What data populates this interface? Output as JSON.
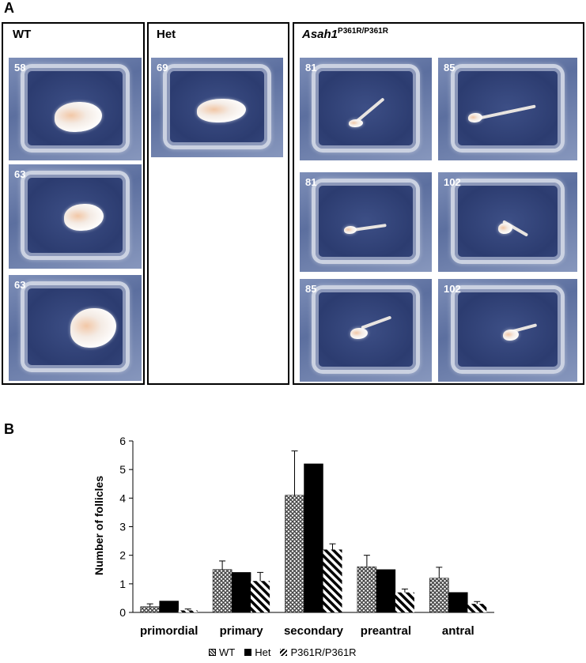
{
  "panel_a": {
    "letter": "A",
    "groups": [
      {
        "label": "WT",
        "photos": [
          "58",
          "63",
          "63"
        ]
      },
      {
        "label": "Het",
        "photos": [
          "69"
        ]
      },
      {
        "label": "Asah1",
        "label_sup": "P361R/P361R",
        "photos": [
          "81",
          "85",
          "81",
          "102",
          "85",
          "102"
        ]
      }
    ]
  },
  "panel_b": {
    "letter": "B",
    "legend": [
      "WT",
      "Het",
      "P361R/P361R"
    ]
  },
  "chart_data": {
    "type": "bar",
    "title": "",
    "xlabel": "",
    "ylabel": "Number of follicles",
    "ylim": [
      0,
      6
    ],
    "yticks": [
      "0",
      "1",
      "2",
      "3",
      "4",
      "5",
      "6"
    ],
    "categories": [
      "primordial",
      "primary",
      "secondary",
      "preantral",
      "antral"
    ],
    "series": [
      {
        "name": "WT",
        "pattern": "crosshatch",
        "color": "#555555",
        "values": [
          0.2,
          1.5,
          4.1,
          1.6,
          1.2
        ],
        "errors": [
          0.1,
          0.3,
          1.55,
          0.4,
          0.38
        ]
      },
      {
        "name": "Het",
        "pattern": "solid",
        "color": "#000000",
        "values": [
          0.4,
          1.4,
          5.2,
          1.5,
          0.7
        ],
        "errors": [
          0,
          0,
          0,
          0,
          0
        ]
      },
      {
        "name": "P361R/P361R",
        "pattern": "diagonal",
        "color": "#000000",
        "values": [
          0.07,
          1.1,
          2.2,
          0.7,
          0.3
        ],
        "errors": [
          0.05,
          0.3,
          0.2,
          0.12,
          0.08
        ]
      }
    ],
    "grid": false,
    "legend_position": "bottom"
  }
}
